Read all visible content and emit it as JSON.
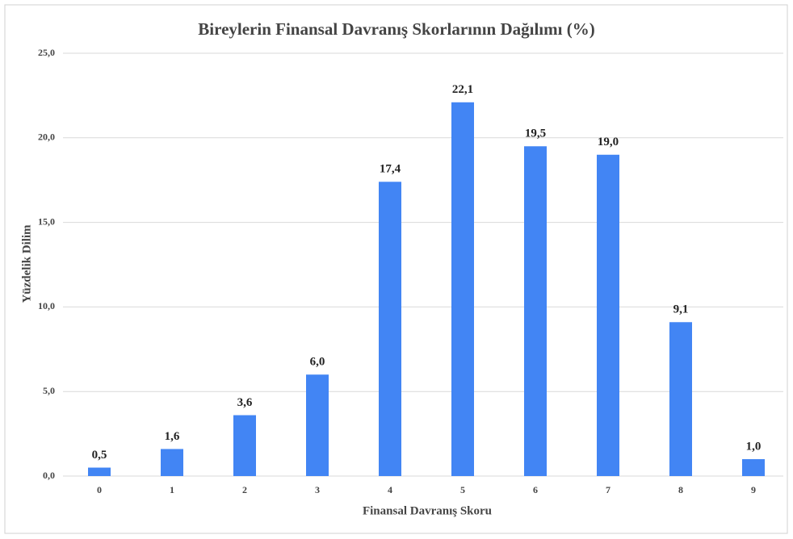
{
  "chart_data": {
    "type": "bar",
    "title": "Bireylerin Finansal Davranış Skorlarının Dağılımı (%)",
    "x_label": "Finansal Davranış Skoru",
    "y_label": "Yüzdelik Dilim",
    "categories": [
      "0",
      "1",
      "2",
      "3",
      "4",
      "5",
      "6",
      "7",
      "8",
      "9"
    ],
    "values": [
      0.5,
      1.6,
      3.6,
      6.0,
      17.4,
      22.1,
      19.5,
      19.0,
      9.1,
      1.0
    ],
    "value_labels": [
      "0,5",
      "1,6",
      "3,6",
      "6,0",
      "17,4",
      "22,1",
      "19,5",
      "19,0",
      "9,1",
      "1,0"
    ],
    "color": "#4285f4",
    "ylim": [
      0,
      25
    ],
    "yticks": [
      {
        "value": 0,
        "label": "0,0"
      },
      {
        "value": 5,
        "label": "5,0"
      },
      {
        "value": 10,
        "label": "10,0"
      },
      {
        "value": 15,
        "label": "15,0"
      },
      {
        "value": 20,
        "label": "20,0"
      },
      {
        "value": 25,
        "label": "25,0"
      }
    ],
    "grid": true
  }
}
